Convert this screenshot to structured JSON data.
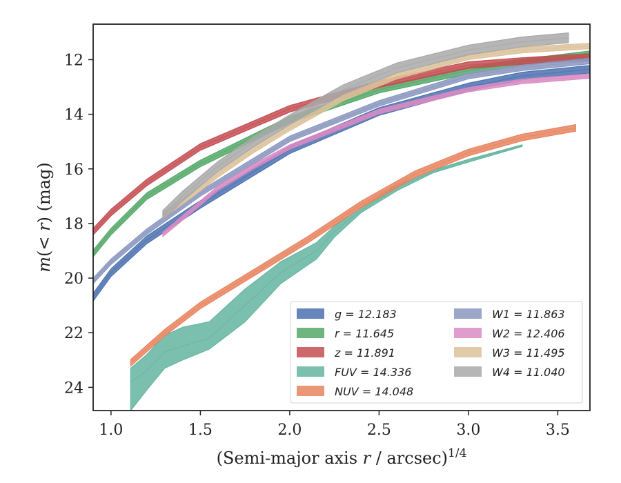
{
  "chart_data": {
    "type": "line",
    "xlabel": "(Semi-major axis r / arcsec)",
    "xlabel_pre": "(Semi-major axis ",
    "xlabel_var": "r",
    "xlabel_post": " / arcsec)",
    "xlabel_exp": "1/4",
    "ylabel_pre": "m(",
    "ylabel_mid": "< r",
    "ylabel_post": ") (mag)",
    "xlim": [
      0.9,
      3.68
    ],
    "ylim": [
      24.85,
      10.7
    ],
    "y_inverted": true,
    "xticks": [
      "1.0",
      "1.5",
      "2.0",
      "2.5",
      "3.0",
      "3.5"
    ],
    "xtick_values": [
      1.0,
      1.5,
      2.0,
      2.5,
      3.0,
      3.5
    ],
    "yticks": [
      "12",
      "14",
      "16",
      "18",
      "20",
      "22",
      "24"
    ],
    "ytick_values": [
      12,
      14,
      16,
      18,
      20,
      22,
      24
    ],
    "grid": false,
    "legend_position": "lower-right",
    "series": [
      {
        "name": "g",
        "label": "g = 12.183",
        "color": "#4c72b0",
        "x": [
          0.9,
          1.0,
          1.2,
          1.5,
          2.0,
          2.5,
          3.0,
          3.3,
          3.68
        ],
        "y": [
          20.7,
          19.8,
          18.6,
          17.3,
          15.3,
          13.9,
          13.0,
          12.6,
          12.35
        ],
        "band": 0.14
      },
      {
        "name": "r",
        "label": "r = 11.645",
        "color": "#55a868",
        "x": [
          0.9,
          1.0,
          1.2,
          1.5,
          2.0,
          2.5,
          3.0,
          3.3,
          3.68
        ],
        "y": [
          19.1,
          18.3,
          17.0,
          15.8,
          14.2,
          13.1,
          12.4,
          12.1,
          11.8
        ],
        "band": 0.12
      },
      {
        "name": "z",
        "label": "z = 11.891",
        "color": "#c44e52",
        "x": [
          0.9,
          1.0,
          1.2,
          1.5,
          2.0,
          2.5,
          3.0,
          3.3,
          3.68
        ],
        "y": [
          18.3,
          17.6,
          16.5,
          15.2,
          13.8,
          12.9,
          12.2,
          12.05,
          11.9
        ],
        "band": 0.12
      },
      {
        "name": "FUV",
        "label": "FUV = 14.336",
        "color": "#64b5a0",
        "x": [
          1.11,
          1.2,
          1.3,
          1.4,
          1.55,
          1.75,
          1.95,
          2.15,
          2.25,
          2.4,
          2.6,
          2.8,
          3.0,
          3.3
        ],
        "y": [
          23.8,
          23.4,
          22.7,
          22.5,
          22.2,
          21.0,
          19.8,
          19.0,
          18.3,
          17.5,
          16.7,
          16.1,
          15.7,
          15.15
        ],
        "band_lower": [
          24.85,
          24.1,
          23.3,
          23.0,
          22.6,
          21.6,
          20.2,
          19.3,
          18.5,
          17.6,
          16.8,
          16.15,
          15.75,
          15.18
        ],
        "band_upper": [
          23.3,
          22.8,
          22.1,
          21.8,
          21.6,
          20.4,
          19.4,
          18.7,
          18.1,
          17.4,
          16.6,
          16.05,
          15.65,
          15.12
        ]
      },
      {
        "name": "NUV",
        "label": "NUV = 14.048",
        "color": "#e8845f",
        "x": [
          1.11,
          1.3,
          1.5,
          1.8,
          2.1,
          2.4,
          2.7,
          3.0,
          3.3,
          3.6
        ],
        "y": [
          23.1,
          22.0,
          21.0,
          19.8,
          18.6,
          17.3,
          16.2,
          15.4,
          14.85,
          14.5
        ],
        "band": 0.12
      },
      {
        "name": "W1",
        "label": "W1 = 11.863",
        "color": "#8a97c0",
        "x": [
          0.9,
          1.0,
          1.2,
          1.5,
          2.0,
          2.5,
          3.0,
          3.3,
          3.68
        ],
        "y": [
          20.1,
          19.4,
          18.3,
          16.9,
          14.9,
          13.6,
          12.6,
          12.3,
          12.05
        ],
        "band": 0.1
      },
      {
        "name": "W2",
        "label": "W2 = 12.406",
        "color": "#da8bc3",
        "x": [
          1.29,
          1.4,
          1.6,
          1.8,
          2.0,
          2.5,
          3.0,
          3.3,
          3.68
        ],
        "y": [
          18.4,
          17.8,
          16.7,
          15.9,
          15.2,
          13.9,
          13.1,
          12.8,
          12.6
        ],
        "band": 0.08
      },
      {
        "name": "W3",
        "label": "W3 = 11.495",
        "color": "#dcc29a",
        "x": [
          1.29,
          1.4,
          1.6,
          1.8,
          2.0,
          2.3,
          2.6,
          3.0,
          3.3,
          3.68
        ],
        "y": [
          17.7,
          17.2,
          16.2,
          15.3,
          14.5,
          13.4,
          12.6,
          11.9,
          11.65,
          11.5
        ],
        "band": 0.1
      },
      {
        "name": "W4",
        "label": "W4 = 11.040",
        "color": "#a9a9a9",
        "x": [
          1.29,
          1.4,
          1.6,
          1.8,
          2.0,
          2.3,
          2.6,
          3.0,
          3.3,
          3.56
        ],
        "y": [
          17.7,
          17.0,
          15.9,
          15.0,
          14.2,
          13.1,
          12.3,
          11.65,
          11.35,
          11.2
        ],
        "band": 0.18
      }
    ]
  }
}
